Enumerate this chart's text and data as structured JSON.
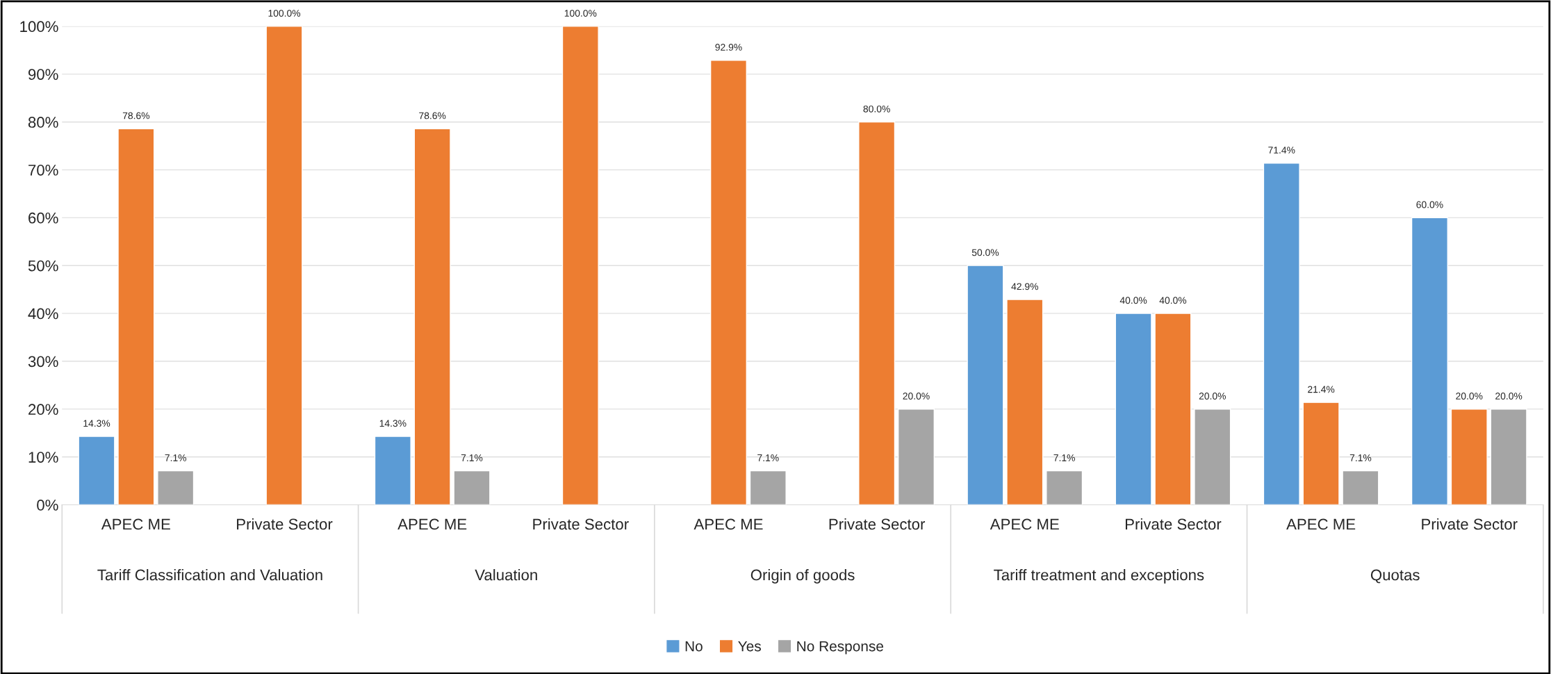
{
  "chart_data": {
    "type": "bar",
    "categories": [
      "APEC ME",
      "Private Sector",
      "APEC ME",
      "Private Sector",
      "APEC ME",
      "Private Sector",
      "APEC ME",
      "Private Sector",
      "APEC ME",
      "Private Sector"
    ],
    "annotations": [
      "Tariff Classification and Valuation",
      "Valuation",
      "Origin of goods",
      "Tariff treatment and exceptions",
      "Quotas"
    ],
    "series": [
      {
        "name": "No",
        "color": "#5b9bd5",
        "values": [
          14.3,
          null,
          14.3,
          null,
          null,
          null,
          50.0,
          40.0,
          71.4,
          60.0
        ],
        "value_labels": [
          "14.3%",
          null,
          "14.3%",
          null,
          null,
          null,
          "50.0%",
          "40.0%",
          "71.4%",
          "60.0%"
        ]
      },
      {
        "name": "Yes",
        "color": "#ed7d31",
        "values": [
          78.6,
          100,
          78.6,
          100,
          92.9,
          80,
          42.9,
          40,
          21.4,
          20
        ],
        "value_labels": [
          "78.6%",
          "100.0%",
          "78.6%",
          "100.0%",
          "92.9%",
          "80.0%",
          "42.9%",
          "40.0%",
          "21.4%",
          "20.0%"
        ]
      },
      {
        "name": "No Response",
        "color": "#a5a5a5",
        "values": [
          7.1,
          null,
          7.1,
          null,
          7.1,
          20,
          7.1,
          20,
          7.1,
          20
        ],
        "value_labels": [
          "7.1%",
          null,
          "7.1%",
          null,
          "7.1%",
          "20.0%",
          "7.1%",
          "20.0%",
          "7.1%",
          "20.0%"
        ]
      }
    ],
    "ylim": [
      0,
      100
    ],
    "yticks": [
      {
        "value": 0,
        "label": "0%"
      },
      {
        "value": 10,
        "label": "10%"
      },
      {
        "value": 20,
        "label": "20%"
      },
      {
        "value": 30,
        "label": "30%"
      },
      {
        "value": 40,
        "label": "40%"
      },
      {
        "value": 50,
        "label": "50%"
      },
      {
        "value": 60,
        "label": "60%"
      },
      {
        "value": 70,
        "label": "70%"
      },
      {
        "value": 80,
        "label": "80%"
      },
      {
        "value": 90,
        "label": "90%"
      },
      {
        "value": 100,
        "label": "100%"
      }
    ],
    "grid": "y",
    "legend": "bottom"
  }
}
